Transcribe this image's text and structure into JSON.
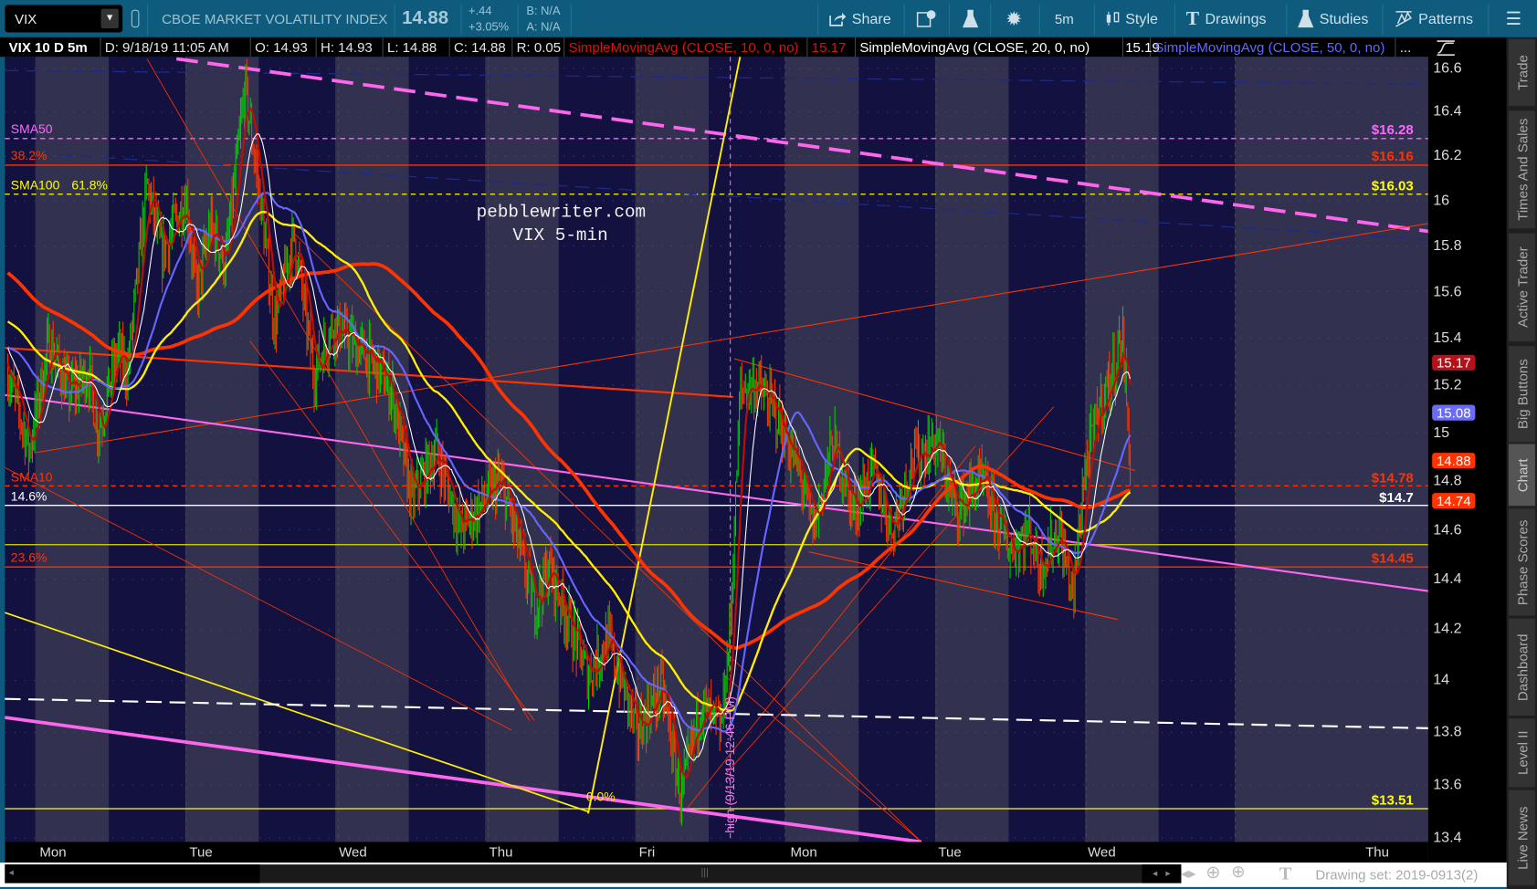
{
  "toolbar": {
    "symbol": "VIX",
    "instrument_name": "CBOE MARKET VOLATILITY INDEX",
    "last": "14.88",
    "change": "+.44",
    "change_pct": "+3.05%",
    "bid": "B: N/A",
    "ask": "A: N/A",
    "buttons": {
      "share": "Share",
      "timeframe": "5m",
      "style": "Style",
      "drawings": "Drawings",
      "studies": "Studies",
      "patterns": "Patterns"
    },
    "icons": [
      "link-icon",
      "share-icon",
      "info-icon",
      "flask-icon",
      "gear-icon",
      "candle-icon",
      "text-icon",
      "studies-flask-icon",
      "patterns-icon",
      "menu-icon"
    ]
  },
  "infobar": {
    "chart_label": "VIX 10 D 5m",
    "date": "D: 9/18/19 11:05 AM",
    "open": "O: 14.93",
    "high": "H: 14.93",
    "low": "L: 14.88",
    "close": "C: 14.88",
    "range": "R: 0.05",
    "studies": [
      {
        "label": "SimpleMovingAvg (CLOSE, 10, 0, no)",
        "value": "15.17",
        "color": "#dd1111"
      },
      {
        "label": "SimpleMovingAvg (CLOSE, 20, 0, no)",
        "value": "15.19",
        "color": "#ffffff"
      },
      {
        "label": "SimpleMovingAvg (CLOSE, 50, 0, no)",
        "value": "",
        "color": "#6666ff"
      }
    ],
    "more": "..."
  },
  "watermark": {
    "line1": "pebblewriter.com",
    "line2": "VIX 5-min"
  },
  "annotations": {
    "fib_zero": "0.0%",
    "high_note": "high (9/13/19 12:46 PM)"
  },
  "levels": [
    {
      "left": "SMA50",
      "right": "$16.28",
      "price": 16.28,
      "color": "#ff66ff",
      "style": "dashed"
    },
    {
      "left": "38.2%",
      "right": "$16.16",
      "price": 16.16,
      "color": "#ff3300",
      "style": "solid"
    },
    {
      "left": "SMA100",
      "left2": "61.8%",
      "right": "$16.03",
      "price": 16.03,
      "color": "#ffff00",
      "style": "dashed"
    },
    {
      "left": "SMA10",
      "right": "$14.78",
      "price": 14.78,
      "color": "#ff3300",
      "style": "dashed"
    },
    {
      "left": "14.6%",
      "right": "$14.7",
      "price": 14.7,
      "color": "#ffffff",
      "style": "solid"
    },
    {
      "left": "",
      "right": "",
      "price": 14.54,
      "color": "#dddd00",
      "style": "solid"
    },
    {
      "left": "23.6%",
      "right": "$14.45",
      "price": 14.45,
      "color": "#ff3300",
      "style": "solid"
    },
    {
      "left": "",
      "right": "$13.51",
      "price": 13.51,
      "color": "#ffff00",
      "style": "solid"
    }
  ],
  "badges": [
    {
      "value": "15.17",
      "color": "#b3121a"
    },
    {
      "value": "15.08",
      "color": "#6b6bf5"
    },
    {
      "value": "14.88",
      "color": "#ff3300"
    },
    {
      "value": "14.74",
      "color": "#ff3300"
    }
  ],
  "chart_data": {
    "type": "line",
    "scale": "log",
    "ylim": [
      13.4,
      16.6
    ],
    "y_ticks": [
      "16.6",
      "16.4",
      "16.2",
      "16",
      "15.8",
      "15.6",
      "15.4",
      "15.2",
      "15",
      "14.8",
      "14.6",
      "14.4",
      "14.2",
      "14",
      "13.8",
      "13.6",
      "13.4"
    ],
    "x_ticks": [
      "Mon",
      "Tue",
      "Wed",
      "Thu",
      "Fri",
      "Mon",
      "Tue",
      "Wed",
      "Thu"
    ],
    "close_path": [
      15.25,
      14.93,
      15.38,
      15.17,
      15.25,
      15.01,
      15.34,
      15.25,
      16.07,
      15.76,
      16.02,
      15.59,
      15.89,
      15.72,
      16.51,
      16.02,
      15.46,
      15.85,
      15.25,
      15.46,
      15.3,
      15.17,
      14.72,
      14.93,
      14.6,
      14.8,
      14.68,
      14.29,
      14.45,
      14.02,
      14.17,
      13.8,
      13.98,
      13.55,
      13.91,
      13.8,
      14.21,
      15.17,
      15.21,
      15.09,
      14.84,
      14.6,
      14.97,
      14.68,
      14.84,
      14.6,
      14.88,
      14.97,
      14.68,
      14.8,
      14.52,
      14.6,
      14.45,
      14.6,
      14.33,
      14.8,
      15.09,
      15.25,
      15.42,
      14.88
    ],
    "colors": {
      "up": "#00cc00",
      "down": "#ff3300",
      "sma10": "#bb1100",
      "sma20": "#ffffff",
      "sma50": "#6666ff",
      "yellow_avg": "#ffee00",
      "orange_avg": "#ff3300"
    },
    "grid": true
  },
  "side_tabs": [
    "Trade",
    "Times And Sales",
    "Active Trader",
    "Big Buttons",
    "Chart",
    "Phase Scores",
    "Dashboard",
    "Level II",
    "Live News"
  ],
  "active_tab": "Chart",
  "bottom": {
    "drawing_set": "Drawing set: 2019-0913(2)"
  }
}
